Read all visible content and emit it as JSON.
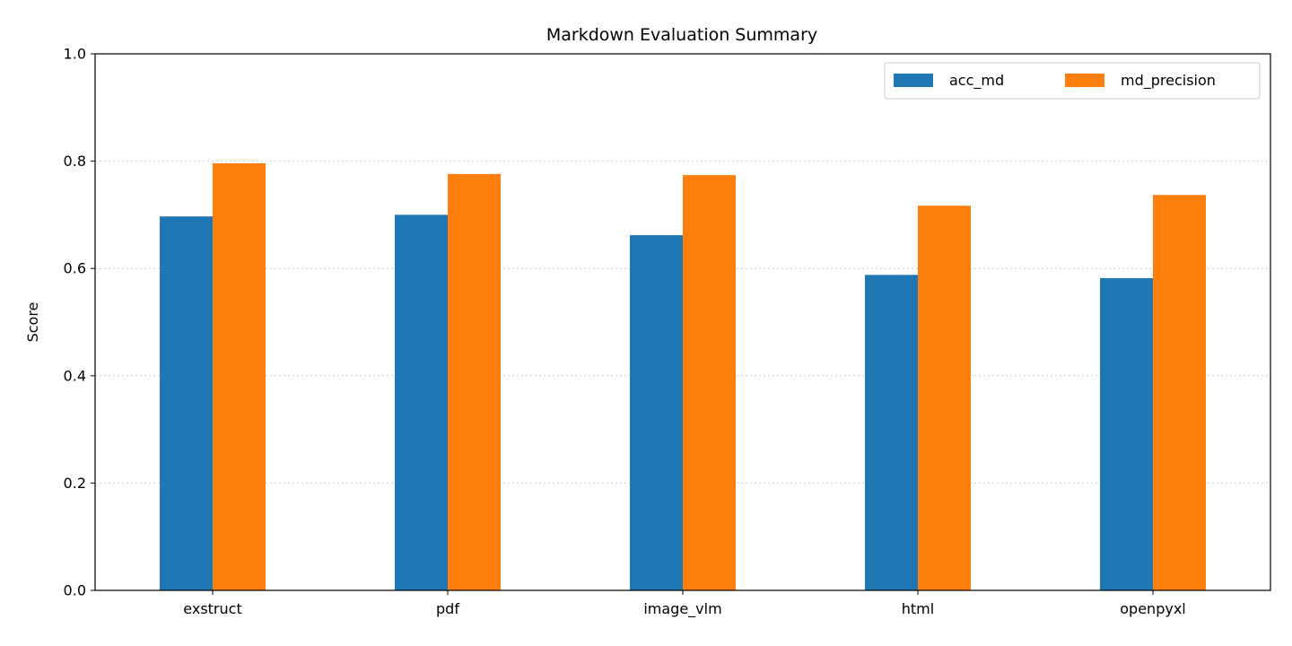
{
  "chart_data": {
    "type": "bar",
    "title": "Markdown Evaluation Summary",
    "xlabel": "",
    "ylabel": "Score",
    "ylim": [
      0,
      1.0
    ],
    "yticks": [
      "0.0",
      "0.2",
      "0.4",
      "0.6",
      "0.8",
      "1.0"
    ],
    "ytick_values": [
      0,
      0.2,
      0.4,
      0.6,
      0.8,
      1.0
    ],
    "categories": [
      "exstruct",
      "pdf",
      "image_vlm",
      "html",
      "openpyxl"
    ],
    "series": [
      {
        "name": "acc_md",
        "color": "#1f77b4",
        "values": [
          0.697,
          0.7,
          0.662,
          0.588,
          0.582
        ]
      },
      {
        "name": "md_precision",
        "color": "#ff7f0e",
        "values": [
          0.796,
          0.776,
          0.774,
          0.717,
          0.737
        ]
      }
    ],
    "grid": "y-dotted",
    "legend_position": "top-right"
  }
}
